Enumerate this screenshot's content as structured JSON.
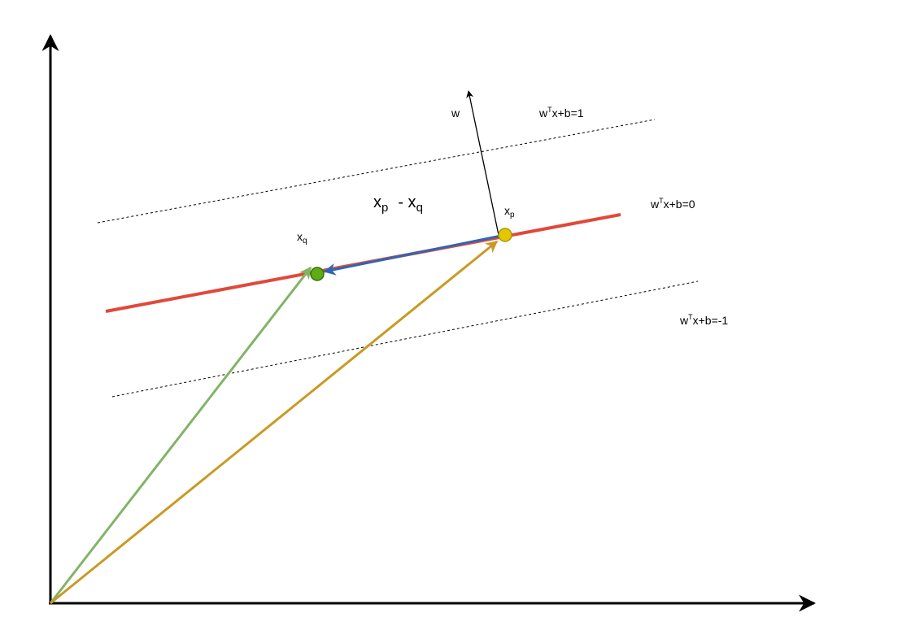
{
  "labels": {
    "w_vector": "w",
    "plus_margin": {
      "base": "w",
      "sup": "T",
      "rest": "x+b=1"
    },
    "hyperplane": {
      "base": "w",
      "sup": "T",
      "rest": "x+b=0"
    },
    "minus_margin": {
      "base": "w",
      "sup": "T",
      "rest": "x+b=-1"
    },
    "difference": {
      "a": "x",
      "a_sub": "p",
      "op": "- x",
      "b_sub": "q"
    },
    "point_p": {
      "base": "x",
      "sub": "p"
    },
    "point_q": {
      "base": "x",
      "sub": "q"
    }
  }
}
